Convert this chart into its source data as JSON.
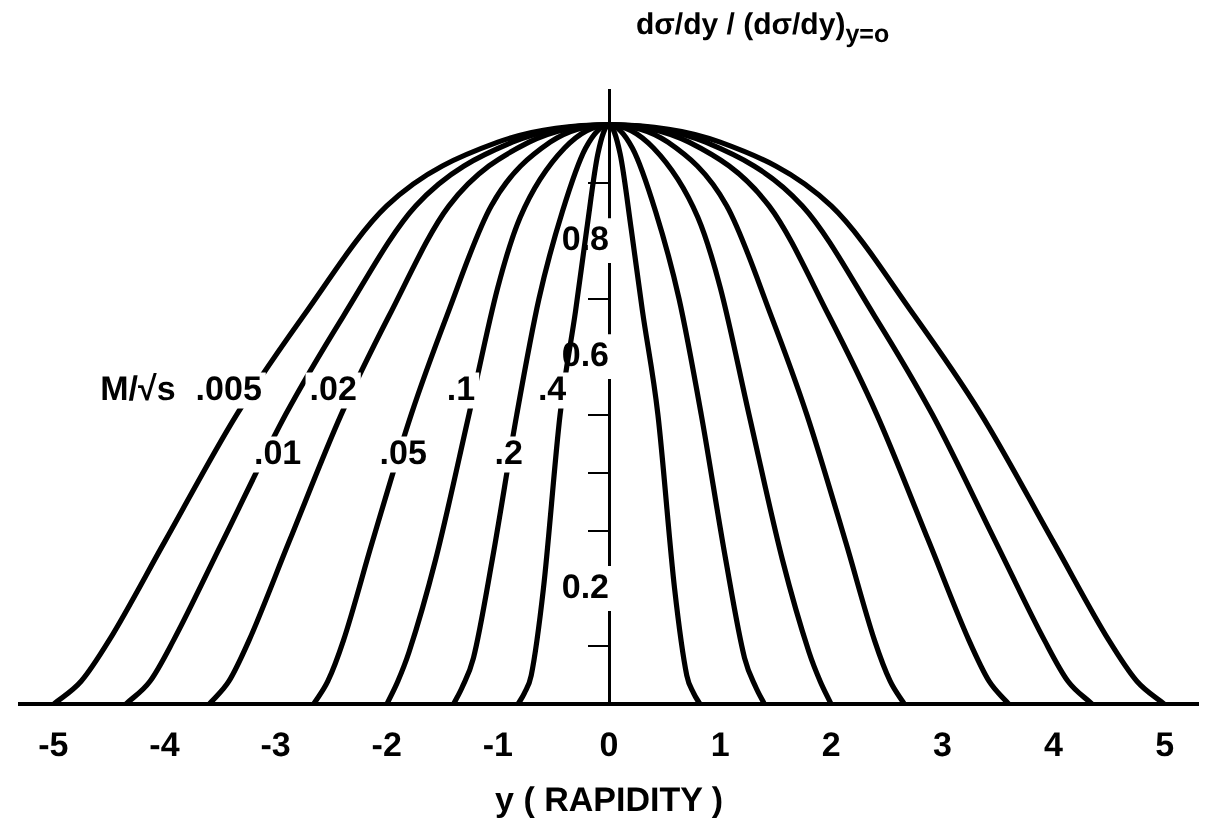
{
  "chart_data": {
    "type": "line",
    "xlabel": "y ( RAPIDITY )",
    "ylabel": "dσ/dy / (dσ/dy)$_{y=o}$",
    "legend_title": "M/√s",
    "xlim": [
      -5.3,
      5.3
    ],
    "ylim": [
      0,
      1.06
    ],
    "xticks": [
      -5,
      -4,
      -3,
      -2,
      -1,
      0,
      1,
      2,
      3,
      4,
      5
    ],
    "yticks": [
      {
        "value": 0.1,
        "label": null
      },
      0.2,
      {
        "value": 0.3,
        "label": null
      },
      {
        "value": 0.4,
        "label": null
      },
      {
        "value": 0.5,
        "label": null
      },
      0.6,
      {
        "value": 0.7,
        "label": null
      },
      0.8,
      {
        "value": 0.9,
        "label": null
      }
    ],
    "marker": "none",
    "line_style": "solid",
    "legend": false,
    "grid": false,
    "series": [
      {
        "name": ".005",
        "color": "#000000",
        "x": [
          -5,
          -4.75,
          -4.5,
          -4,
          -3.35,
          -2.75,
          -2,
          -1,
          0,
          1,
          2,
          2.75,
          3.35,
          4,
          4.5,
          4.75,
          5
        ],
        "values": [
          0,
          0.04,
          0.11,
          0.28,
          0.5,
          0.67,
          0.86,
          0.97,
          1,
          0.97,
          0.86,
          0.67,
          0.5,
          0.28,
          0.11,
          0.04,
          0
        ]
      },
      {
        "name": ".01",
        "color": "#000000",
        "x": [
          -4.35,
          -4.13,
          -3.92,
          -3.48,
          -2.91,
          -2.39,
          -1.74,
          -0.87,
          0,
          0.87,
          1.74,
          2.39,
          2.91,
          3.48,
          3.92,
          4.13,
          4.35
        ],
        "values": [
          0,
          0.04,
          0.11,
          0.28,
          0.5,
          0.67,
          0.86,
          0.97,
          1,
          0.97,
          0.86,
          0.67,
          0.5,
          0.28,
          0.11,
          0.04,
          0
        ]
      },
      {
        "name": ".02",
        "color": "#000000",
        "x": [
          -3.6,
          -3.42,
          -3.24,
          -2.88,
          -2.41,
          -1.98,
          -1.44,
          -0.72,
          0,
          0.72,
          1.44,
          1.98,
          2.41,
          2.88,
          3.24,
          3.42,
          3.6
        ],
        "values": [
          0,
          0.04,
          0.11,
          0.28,
          0.5,
          0.67,
          0.86,
          0.97,
          1,
          0.97,
          0.86,
          0.67,
          0.5,
          0.28,
          0.11,
          0.04,
          0
        ]
      },
      {
        "name": ".05",
        "color": "#000000",
        "x": [
          -2.66,
          -2.53,
          -2.39,
          -2.13,
          -1.78,
          -1.46,
          -1.06,
          -0.53,
          0,
          0.53,
          1.06,
          1.46,
          1.78,
          2.13,
          2.39,
          2.53,
          2.66
        ],
        "values": [
          0,
          0.04,
          0.11,
          0.28,
          0.5,
          0.67,
          0.86,
          0.97,
          1,
          0.97,
          0.86,
          0.67,
          0.5,
          0.28,
          0.11,
          0.04,
          0
        ]
      },
      {
        "name": ".1",
        "color": "#000000",
        "x": [
          -2,
          -1.9,
          -1.8,
          -1.56,
          -1.26,
          -1,
          -0.8,
          -0.4,
          0,
          0.4,
          0.8,
          1,
          1.26,
          1.56,
          1.8,
          1.9,
          2
        ],
        "values": [
          0,
          0.04,
          0.09,
          0.25,
          0.5,
          0.72,
          0.84,
          0.96,
          1,
          0.96,
          0.84,
          0.72,
          0.5,
          0.25,
          0.09,
          0.04,
          0
        ]
      },
      {
        "name": ".2",
        "color": "#000000",
        "x": [
          -1.4,
          -1.32,
          -1.22,
          -1.05,
          -0.83,
          -0.63,
          -0.42,
          -0.21,
          0,
          0.21,
          0.42,
          0.63,
          0.83,
          1.05,
          1.22,
          1.32,
          1.4
        ],
        "values": [
          0,
          0.03,
          0.08,
          0.25,
          0.5,
          0.7,
          0.85,
          0.96,
          1,
          0.96,
          0.85,
          0.7,
          0.5,
          0.25,
          0.08,
          0.03,
          0
        ]
      },
      {
        "name": ".4",
        "color": "#000000",
        "x": [
          -0.82,
          -0.76,
          -0.7,
          -0.59,
          -0.44,
          -0.3,
          -0.2,
          -0.1,
          0,
          0.1,
          0.2,
          0.3,
          0.44,
          0.59,
          0.7,
          0.76,
          0.82
        ],
        "values": [
          0,
          0.02,
          0.05,
          0.2,
          0.5,
          0.68,
          0.82,
          0.95,
          1,
          0.95,
          0.82,
          0.68,
          0.5,
          0.2,
          0.05,
          0.02,
          0
        ]
      }
    ]
  }
}
